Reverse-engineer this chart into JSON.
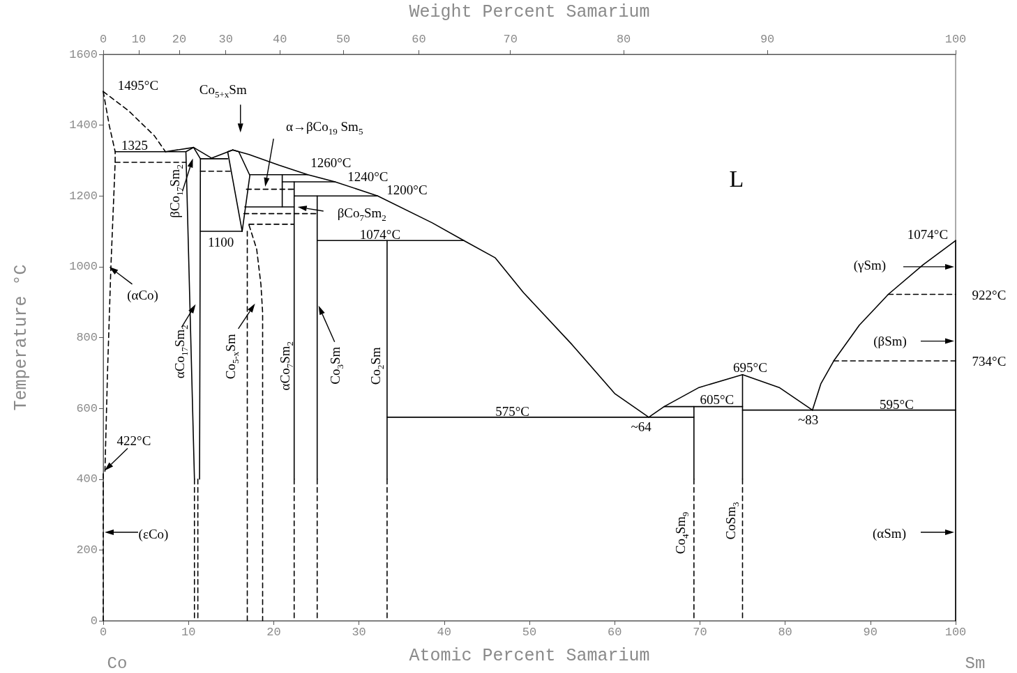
{
  "chart_data": {
    "type": "line",
    "xlabel": "Atomic Percent Samarium",
    "x2label": "Weight Percent Samarium",
    "ylabel": "Temperature °C",
    "xlim": [
      0,
      100
    ],
    "xticks": [
      0,
      10,
      20,
      30,
      40,
      50,
      60,
      70,
      80,
      90,
      100
    ],
    "ylim": [
      0,
      1600
    ],
    "yticks": [
      0,
      200,
      400,
      600,
      800,
      1000,
      1200,
      1400,
      1600
    ],
    "marker": "none",
    "series": [
      {
        "color": "#000000",
        "line_style": "dashed",
        "x": [
          0,
          3,
          6,
          7.3
        ],
        "values": [
          1495,
          1440,
          1370,
          1325
        ]
      },
      {
        "color": "#000000",
        "line_style": "dashed",
        "x": [
          0,
          0.7,
          1.4,
          1.4,
          0.9,
          0.5,
          0.2
        ],
        "values": [
          1495,
          1400,
          1325,
          1295,
          1000,
          700,
          422
        ]
      },
      {
        "color": "#000000",
        "line_style": "dashed",
        "x": [
          0,
          0
        ],
        "values": [
          0,
          422
        ]
      },
      {
        "color": "#000000",
        "line_style": "solid",
        "x": [
          1.4,
          9.7
        ],
        "values": [
          1325,
          1325
        ]
      },
      {
        "color": "#000000",
        "line_style": "dashed",
        "x": [
          1.4,
          9.7
        ],
        "values": [
          1295,
          1295
        ]
      },
      {
        "color": "#000000",
        "line_style": "solid",
        "x": [
          7.3,
          10.6,
          12.7,
          15.2,
          17.1,
          20.6,
          24,
          27.2,
          32.2,
          38.6,
          42.3,
          46,
          49.3,
          55,
          60,
          64
        ],
        "values": [
          1325,
          1337,
          1307,
          1330,
          1317,
          1287,
          1260,
          1240,
          1200,
          1124,
          1074,
          1025,
          927,
          780,
          642,
          575
        ]
      },
      {
        "color": "#000000",
        "line_style": "solid",
        "x": [
          10.6,
          9.7,
          10.7
        ],
        "values": [
          1337,
          1325,
          400
        ]
      },
      {
        "color": "#000000",
        "line_style": "solid",
        "x": [
          10.6,
          11.4,
          11.3
        ],
        "values": [
          1337,
          1305,
          400
        ]
      },
      {
        "color": "#000000",
        "line_style": "dashed",
        "x": [
          10.7,
          10.7
        ],
        "values": [
          400,
          0
        ]
      },
      {
        "color": "#000000",
        "line_style": "dashed",
        "x": [
          11.1,
          11.1
        ],
        "values": [
          400,
          0
        ]
      },
      {
        "color": "#000000",
        "line_style": "solid",
        "x": [
          11.4,
          14.6
        ],
        "values": [
          1305,
          1305
        ]
      },
      {
        "color": "#000000",
        "line_style": "dashed",
        "x": [
          11.4,
          14.9
        ],
        "values": [
          1270,
          1270
        ]
      },
      {
        "color": "#000000",
        "line_style": "solid",
        "x": [
          15.2,
          14.6,
          16.3
        ],
        "values": [
          1330,
          1325,
          1100
        ]
      },
      {
        "color": "#000000",
        "line_style": "solid",
        "x": [
          15.2,
          15.9,
          17.2,
          16.3
        ],
        "values": [
          1330,
          1325,
          1258,
          1100
        ]
      },
      {
        "color": "#000000",
        "line_style": "solid",
        "x": [
          11.4,
          16.3
        ],
        "values": [
          1100,
          1100
        ]
      },
      {
        "color": "#000000",
        "line_style": "dashed",
        "x": [
          16.9,
          16.9
        ],
        "values": [
          1100,
          0
        ]
      },
      {
        "color": "#000000",
        "line_style": "dashed",
        "x": [
          17.1,
          18,
          18.5,
          18.7,
          18.7
        ],
        "values": [
          1118,
          1050,
          950,
          870,
          0
        ]
      },
      {
        "color": "#000000",
        "line_style": "solid",
        "x": [
          17.2,
          24
        ],
        "values": [
          1260,
          1260
        ]
      },
      {
        "color": "#000000",
        "line_style": "solid",
        "x": [
          21,
          27.2
        ],
        "values": [
          1240,
          1240
        ]
      },
      {
        "color": "#000000",
        "line_style": "solid",
        "x": [
          22.4,
          32.2
        ],
        "values": [
          1200,
          1200
        ]
      },
      {
        "color": "#000000",
        "line_style": "solid",
        "x": [
          16.6,
          22.4
        ],
        "values": [
          1169,
          1169
        ]
      },
      {
        "color": "#000000",
        "line_style": "dashed",
        "x": [
          16.8,
          22.3
        ],
        "values": [
          1219,
          1219
        ]
      },
      {
        "color": "#000000",
        "line_style": "dashed",
        "x": [
          16.5,
          25.3
        ],
        "values": [
          1150,
          1150
        ]
      },
      {
        "color": "#000000",
        "line_style": "dashed",
        "x": [
          17.1,
          22.3
        ],
        "values": [
          1120,
          1120
        ]
      },
      {
        "color": "#000000",
        "line_style": "solid",
        "x": [
          21,
          21
        ],
        "values": [
          1260,
          1169
        ]
      },
      {
        "color": "#000000",
        "line_style": "solid",
        "x": [
          22.4,
          22.4
        ],
        "values": [
          1240,
          400
        ]
      },
      {
        "color": "#000000",
        "line_style": "dashed",
        "x": [
          22.4,
          22.4
        ],
        "values": [
          400,
          0
        ]
      },
      {
        "color": "#000000",
        "line_style": "solid",
        "x": [
          25.1,
          25.1
        ],
        "values": [
          1200,
          400
        ]
      },
      {
        "color": "#000000",
        "line_style": "dashed",
        "x": [
          25.1,
          25.1
        ],
        "values": [
          400,
          0
        ]
      },
      {
        "color": "#000000",
        "line_style": "solid",
        "x": [
          25.1,
          42.3
        ],
        "values": [
          1074,
          1074
        ]
      },
      {
        "color": "#000000",
        "line_style": "solid",
        "x": [
          33.3,
          33.3
        ],
        "values": [
          1074,
          400
        ]
      },
      {
        "color": "#000000",
        "line_style": "dashed",
        "x": [
          33.3,
          33.3
        ],
        "values": [
          400,
          0
        ]
      },
      {
        "color": "#000000",
        "line_style": "solid",
        "x": [
          33.3,
          69.3
        ],
        "values": [
          575,
          575
        ]
      },
      {
        "color": "#000000",
        "line_style": "solid",
        "x": [
          64,
          65.8,
          69.9,
          75,
          79.3,
          83.2
        ],
        "values": [
          575,
          605,
          659,
          695,
          659,
          595
        ]
      },
      {
        "color": "#000000",
        "line_style": "solid",
        "x": [
          65.8,
          75
        ],
        "values": [
          605,
          605
        ]
      },
      {
        "color": "#000000",
        "line_style": "solid",
        "x": [
          69.3,
          69.3
        ],
        "values": [
          605,
          400
        ]
      },
      {
        "color": "#000000",
        "line_style": "dashed",
        "x": [
          69.3,
          69.3
        ],
        "values": [
          400,
          0
        ]
      },
      {
        "color": "#000000",
        "line_style": "solid",
        "x": [
          75,
          75
        ],
        "values": [
          695,
          400
        ]
      },
      {
        "color": "#000000",
        "line_style": "dashed",
        "x": [
          75,
          75
        ],
        "values": [
          400,
          0
        ]
      },
      {
        "color": "#000000",
        "line_style": "solid",
        "x": [
          75,
          100
        ],
        "values": [
          595,
          595
        ]
      },
      {
        "color": "#000000",
        "line_style": "solid",
        "x": [
          83.2,
          84.2,
          85.7,
          88.7,
          92.1,
          96.2,
          100
        ],
        "values": [
          595,
          670,
          734,
          835,
          922,
          1006,
          1074
        ]
      },
      {
        "color": "#000000",
        "line_style": "dashed",
        "x": [
          92.1,
          100
        ],
        "values": [
          922,
          922
        ]
      },
      {
        "color": "#000000",
        "line_style": "dashed",
        "x": [
          85.7,
          100
        ],
        "values": [
          734,
          734
        ]
      },
      {
        "color": "#000000",
        "line_style": "solid",
        "x": [
          100,
          100
        ],
        "values": [
          0,
          1074
        ]
      }
    ],
    "annotations": [
      {
        "text": "1495°C",
        "x": 0,
        "y": 1495
      },
      "Co$_{5+x}$Sm",
      {
        "text": "1325",
        "x": 4,
        "y": 1325
      },
      "α→βCo$_{19}$ Sm$_{5}$",
      {
        "text": "1260°C",
        "x": 24,
        "y": 1260
      },
      {
        "text": "1240°C",
        "x": 27.2,
        "y": 1240
      },
      {
        "text": "1200°C",
        "x": 32.2,
        "y": 1200
      },
      "L",
      "βCo$_{7}$Sm$_{2}$",
      {
        "text": "1074°C",
        "x": 33.3,
        "y": 1074
      },
      "βCo$_{17}$Sm$_{2}$",
      {
        "text": "1100",
        "x": 13.8,
        "y": 1100
      },
      {
        "text": "(αCo)",
        "x": 0.7,
        "y": 1000
      },
      {
        "text": "αCo$_{17}$Sm$_{2}$",
        "x": 11,
        "y": 900
      },
      {
        "text": "Co$_{5-x}$Sm",
        "x": 18.3,
        "y": 890
      },
      {
        "text": "αCo$_{7}$Sm$_{2}$",
        "x": 22.4,
        "y": 720
      },
      "Co$_{3}$Sm",
      {
        "text": "Co$_{2}$Sm",
        "x": 33.3,
        "y": 720
      },
      {
        "text": "422°C",
        "x": 0,
        "y": 422
      },
      {
        "text": "(εCo)",
        "x": 0,
        "y": 250
      },
      {
        "text": "575°C",
        "x": 48,
        "y": 575
      },
      {
        "text": "~64",
        "x": 64,
        "y": 575
      },
      {
        "text": "605°C",
        "x": 72,
        "y": 605
      },
      {
        "text": "695°C",
        "x": 75,
        "y": 695
      },
      {
        "text": "~83",
        "x": 83.2,
        "y": 595
      },
      {
        "text": "595°C",
        "x": 93,
        "y": 595
      },
      {
        "text": "Co$_{4}$Sm$_{9}$",
        "x": 69.3,
        "y": 250
      },
      {
        "text": "CoSm$_{3}$",
        "x": 75,
        "y": 300
      },
      {
        "text": "1074°C",
        "x": 100,
        "y": 1074
      },
      "(γSm)",
      {
        "text": "922°C",
        "x": 100,
        "y": 922
      },
      "(βSm)",
      {
        "text": "734°C",
        "x": 100,
        "y": 734
      },
      "(αSm)",
      "Co",
      "Sm",
      "0",
      "10",
      "20",
      "30",
      "40",
      "50",
      "60",
      "70",
      "80",
      "90",
      "100"
    ]
  }
}
